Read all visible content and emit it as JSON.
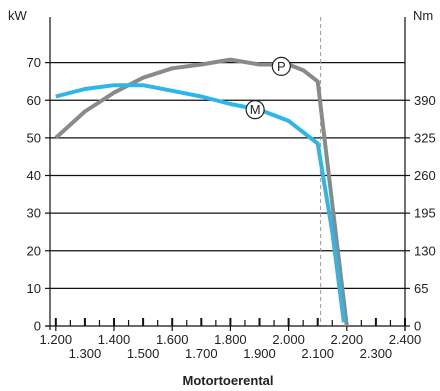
{
  "chart_data": {
    "type": "line",
    "xlabel": "Motortoerental",
    "ylabel_left": "kW",
    "ylabel_right": "Nm",
    "xlim": [
      1180,
      2400
    ],
    "ylim_left": [
      0,
      80
    ],
    "right_axis_ticks": [
      {
        "value": 0,
        "label": "0",
        "kw": 0
      },
      {
        "value": 65,
        "label": "65",
        "kw": 10
      },
      {
        "value": 130,
        "label": "130",
        "kw": 20
      },
      {
        "value": 195,
        "label": "195",
        "kw": 30
      },
      {
        "value": 260,
        "label": "260",
        "kw": 40
      },
      {
        "value": 325,
        "label": "325",
        "kw": 50
      },
      {
        "value": 390,
        "label": "390",
        "kw": 60
      }
    ],
    "left_axis_ticks": [
      {
        "value": 0,
        "label": "0"
      },
      {
        "value": 10,
        "label": "10"
      },
      {
        "value": 20,
        "label": "20"
      },
      {
        "value": 30,
        "label": "30"
      },
      {
        "value": 40,
        "label": "40"
      },
      {
        "value": 50,
        "label": "50"
      },
      {
        "value": 60,
        "label": "60"
      },
      {
        "value": 70,
        "label": "70"
      }
    ],
    "x_ticks_upper": [
      {
        "value": 1200,
        "label": "1.200"
      },
      {
        "value": 1400,
        "label": "1.400"
      },
      {
        "value": 1600,
        "label": "1.600"
      },
      {
        "value": 1800,
        "label": "1.800"
      },
      {
        "value": 2000,
        "label": "2.000"
      },
      {
        "value": 2200,
        "label": "2.200"
      },
      {
        "value": 2400,
        "label": "2.400"
      }
    ],
    "x_ticks_lower": [
      {
        "value": 1300,
        "label": "1.300"
      },
      {
        "value": 1500,
        "label": "1.500"
      },
      {
        "value": 1700,
        "label": "1.700"
      },
      {
        "value": 1900,
        "label": "1.900"
      },
      {
        "value": 2100,
        "label": "2.100"
      },
      {
        "value": 2300,
        "label": "2.300"
      }
    ],
    "grid_lines_kw": [
      10,
      20,
      30,
      40,
      50,
      60,
      70
    ],
    "reference_line_x": 2110,
    "series": [
      {
        "name": "P",
        "marker_label": "P",
        "marker_at": {
          "x": 1975,
          "y": 69
        },
        "color": "#8a8a8a",
        "points": [
          [
            1200,
            50
          ],
          [
            1300,
            57
          ],
          [
            1400,
            62
          ],
          [
            1500,
            66
          ],
          [
            1600,
            68.5
          ],
          [
            1700,
            69.5
          ],
          [
            1800,
            70.8
          ],
          [
            1900,
            69.5
          ],
          [
            2000,
            69.5
          ],
          [
            2050,
            68
          ],
          [
            2100,
            65
          ],
          [
            2200,
            0
          ]
        ]
      },
      {
        "name": "M",
        "marker_label": "M",
        "marker_at": {
          "x": 1885,
          "y": 57.5
        },
        "color": "#2bb7ea",
        "points": [
          [
            1200,
            61
          ],
          [
            1300,
            63
          ],
          [
            1400,
            64
          ],
          [
            1500,
            64
          ],
          [
            1600,
            62.5
          ],
          [
            1700,
            61
          ],
          [
            1800,
            59
          ],
          [
            1900,
            57.5
          ],
          [
            2000,
            54.5
          ],
          [
            2100,
            48.5
          ],
          [
            2150,
            25
          ],
          [
            2190,
            1
          ]
        ]
      }
    ]
  }
}
